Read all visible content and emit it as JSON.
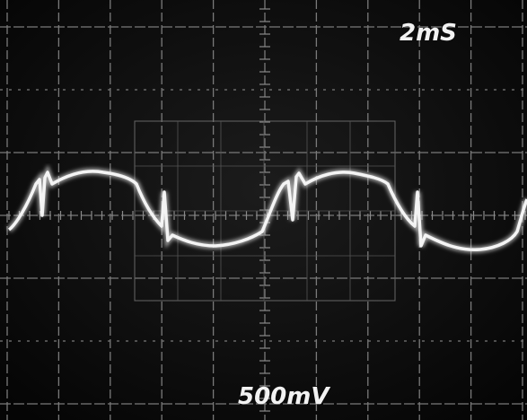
{
  "labels": {
    "timebase": "2mS",
    "voltage": "500mV"
  }
}
